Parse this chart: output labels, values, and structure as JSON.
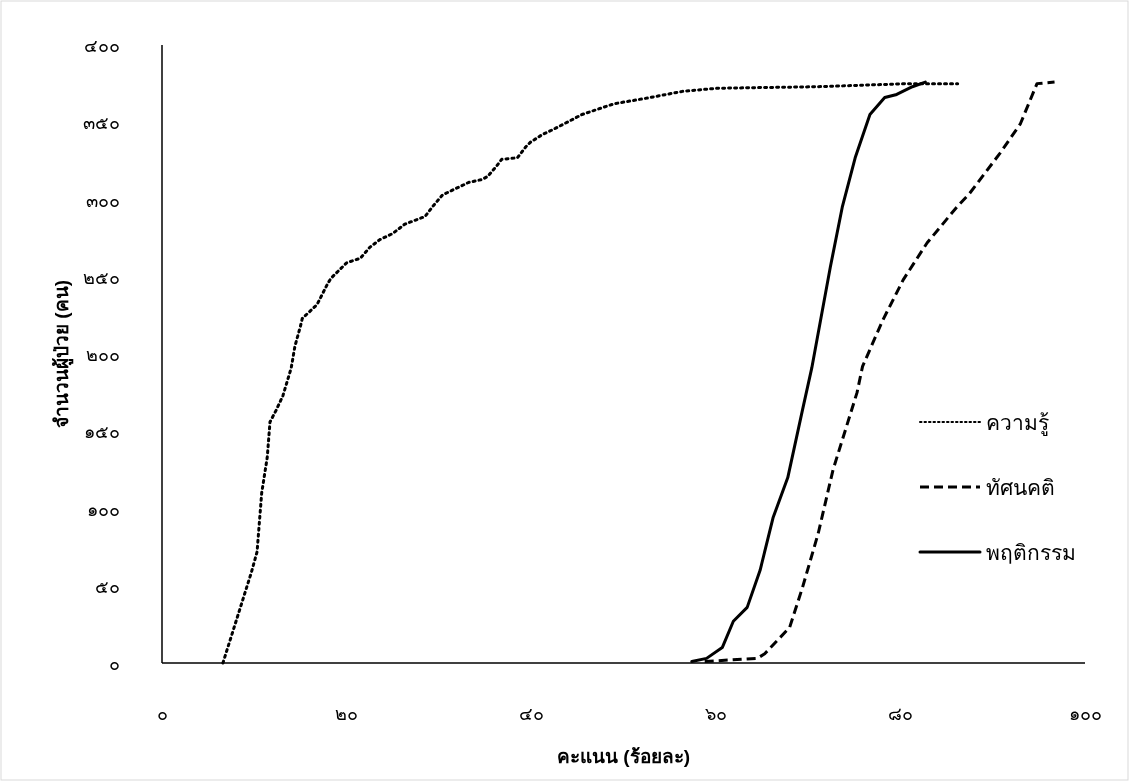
{
  "chart_data": {
    "type": "line",
    "xlabel": "คะแนน (ร้อยละ)",
    "ylabel": "จำนวนผู้ป่วย (คน)",
    "xlim": [
      0,
      100
    ],
    "ylim": [
      0,
      400
    ],
    "xticks": [
      {
        "value": 0,
        "label": "๐"
      },
      {
        "value": 20,
        "label": "๒๐"
      },
      {
        "value": 40,
        "label": "๔๐"
      },
      {
        "value": 60,
        "label": "๖๐"
      },
      {
        "value": 80,
        "label": "๘๐"
      },
      {
        "value": 100,
        "label": "๑๐๐"
      }
    ],
    "yticks": [
      {
        "value": 0,
        "label": "๐"
      },
      {
        "value": 50,
        "label": "๕๐"
      },
      {
        "value": 100,
        "label": "๑๐๐"
      },
      {
        "value": 150,
        "label": "๑๕๐"
      },
      {
        "value": 200,
        "label": "๒๐๐"
      },
      {
        "value": 250,
        "label": "๒๕๐"
      },
      {
        "value": 300,
        "label": "๓๐๐"
      },
      {
        "value": 350,
        "label": "๓๕๐"
      },
      {
        "value": 400,
        "label": "๔๐๐"
      }
    ],
    "grid": false,
    "legend": "right",
    "marker": "none",
    "series": [
      {
        "name": "ความรู้",
        "color": "#000000",
        "line_style": "dotted",
        "x": [
          6.6,
          8.6,
          9.7,
          10.3,
          10.8,
          11.4,
          11.7,
          12.4,
          13.1,
          14.0,
          14.4,
          15.0,
          15.2,
          16.8,
          17.9,
          18.3,
          20.0,
          21.5,
          22.5,
          23.6,
          25.0,
          26.3,
          28.5,
          29.4,
          30.4,
          33.2,
          34.7,
          35.3,
          36.3,
          36.8,
          38.5,
          39.4,
          39.9,
          41.2,
          42.6,
          45.5,
          49.0,
          52.9,
          56.4,
          60.1,
          71.0,
          81.0,
          86.2
        ],
        "values": [
          0,
          38,
          59,
          72,
          110,
          133,
          156,
          164,
          173,
          191,
          205,
          218,
          223,
          232,
          245,
          249,
          259,
          262,
          269,
          274,
          278,
          284,
          289,
          296,
          303,
          311,
          313,
          315,
          322,
          326,
          327,
          334,
          337,
          342,
          346,
          355,
          362,
          366,
          370,
          372,
          373,
          375,
          375
        ]
      },
      {
        "name": "ทัศนคติ",
        "color": "#000000",
        "line_style": "dashed",
        "x": [
          58.8,
          64.5,
          65.3,
          68.0,
          69.4,
          71.1,
          72.7,
          75.3,
          75.9,
          78.1,
          80.3,
          82.9,
          86.1,
          87.5,
          90.8,
          93.0,
          94.8,
          96.7
        ],
        "values": [
          1,
          3,
          6,
          23,
          49,
          84,
          125,
          175,
          192,
          222,
          248,
          272,
          295,
          304,
          330,
          349,
          375,
          376
        ]
      },
      {
        "name": "พฤติกรรม",
        "color": "#000000",
        "line_style": "solid",
        "x": [
          57.4,
          59.0,
          60.7,
          61.9,
          63.4,
          64.8,
          66.2,
          67.8,
          69.4,
          70.4,
          72.4,
          73.7,
          75.1,
          76.7,
          78.3,
          79.6,
          81.3,
          82.7
        ],
        "values": [
          1,
          3,
          10,
          27,
          36,
          60,
          94,
          120,
          164,
          191,
          256,
          295,
          327,
          355,
          366,
          368,
          373,
          376
        ]
      }
    ]
  }
}
